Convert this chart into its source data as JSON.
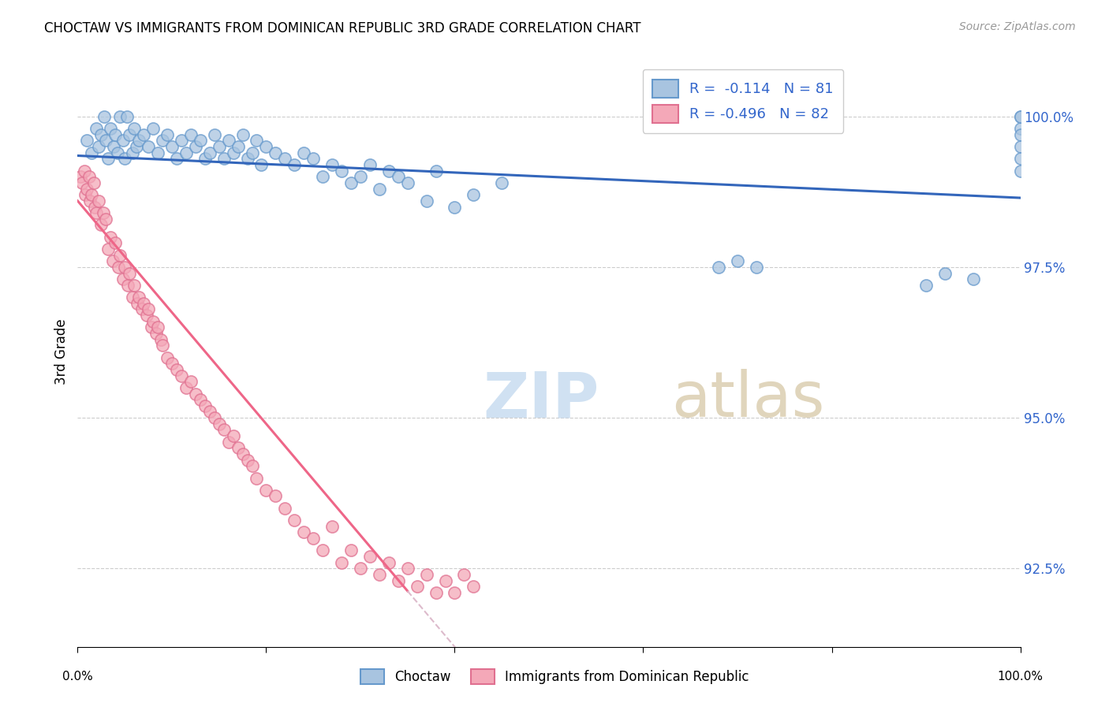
{
  "title": "CHOCTAW VS IMMIGRANTS FROM DOMINICAN REPUBLIC 3RD GRADE CORRELATION CHART",
  "source": "Source: ZipAtlas.com",
  "ylabel": "3rd Grade",
  "yticks": [
    92.5,
    95.0,
    97.5,
    100.0
  ],
  "ytick_labels": [
    "92.5%",
    "95.0%",
    "97.5%",
    "100.0%"
  ],
  "xlim": [
    0.0,
    100.0
  ],
  "ylim": [
    91.2,
    101.0
  ],
  "blue_R": "-0.114",
  "blue_N": "81",
  "pink_R": "-0.496",
  "pink_N": "82",
  "blue_color": "#A8C4E0",
  "pink_color": "#F4A8B8",
  "blue_edge_color": "#6699CC",
  "pink_edge_color": "#E07090",
  "blue_line_color": "#3366BB",
  "pink_line_color": "#EE6688",
  "dashed_line_color": "#DDBBCC",
  "blue_line_y0": 99.35,
  "blue_line_y1": 98.65,
  "pink_line_y0": 98.6,
  "pink_line_solid_end_x": 35.0,
  "pink_line_slope": -0.185,
  "blue_scatter_x": [
    1.0,
    1.5,
    2.0,
    2.2,
    2.5,
    2.8,
    3.0,
    3.2,
    3.5,
    3.8,
    4.0,
    4.2,
    4.5,
    4.8,
    5.0,
    5.2,
    5.5,
    5.8,
    6.0,
    6.2,
    6.5,
    7.0,
    7.5,
    8.0,
    8.5,
    9.0,
    9.5,
    10.0,
    10.5,
    11.0,
    11.5,
    12.0,
    12.5,
    13.0,
    13.5,
    14.0,
    14.5,
    15.0,
    15.5,
    16.0,
    16.5,
    17.0,
    17.5,
    18.0,
    18.5,
    19.0,
    19.5,
    20.0,
    21.0,
    22.0,
    23.0,
    24.0,
    25.0,
    26.0,
    27.0,
    28.0,
    29.0,
    30.0,
    31.0,
    32.0,
    33.0,
    34.0,
    35.0,
    37.0,
    38.0,
    40.0,
    42.0,
    45.0,
    68.0,
    70.0,
    72.0,
    90.0,
    92.0,
    95.0,
    100.0,
    100.0,
    100.0,
    100.0,
    100.0,
    100.0,
    100.0
  ],
  "blue_scatter_y": [
    99.6,
    99.4,
    99.8,
    99.5,
    99.7,
    100.0,
    99.6,
    99.3,
    99.8,
    99.5,
    99.7,
    99.4,
    100.0,
    99.6,
    99.3,
    100.0,
    99.7,
    99.4,
    99.8,
    99.5,
    99.6,
    99.7,
    99.5,
    99.8,
    99.4,
    99.6,
    99.7,
    99.5,
    99.3,
    99.6,
    99.4,
    99.7,
    99.5,
    99.6,
    99.3,
    99.4,
    99.7,
    99.5,
    99.3,
    99.6,
    99.4,
    99.5,
    99.7,
    99.3,
    99.4,
    99.6,
    99.2,
    99.5,
    99.4,
    99.3,
    99.2,
    99.4,
    99.3,
    99.0,
    99.2,
    99.1,
    98.9,
    99.0,
    99.2,
    98.8,
    99.1,
    99.0,
    98.9,
    98.6,
    99.1,
    98.5,
    98.7,
    98.9,
    97.5,
    97.6,
    97.5,
    97.2,
    97.4,
    97.3,
    100.0,
    99.8,
    99.7,
    99.5,
    99.3,
    99.1,
    100.0
  ],
  "pink_scatter_x": [
    0.3,
    0.5,
    0.7,
    0.8,
    1.0,
    1.2,
    1.3,
    1.5,
    1.7,
    1.8,
    2.0,
    2.2,
    2.5,
    2.7,
    3.0,
    3.2,
    3.5,
    3.7,
    4.0,
    4.3,
    4.5,
    4.8,
    5.0,
    5.3,
    5.5,
    5.8,
    6.0,
    6.3,
    6.5,
    6.8,
    7.0,
    7.3,
    7.5,
    7.8,
    8.0,
    8.3,
    8.5,
    8.8,
    9.0,
    9.5,
    10.0,
    10.5,
    11.0,
    11.5,
    12.0,
    12.5,
    13.0,
    13.5,
    14.0,
    14.5,
    15.0,
    15.5,
    16.0,
    16.5,
    17.0,
    17.5,
    18.0,
    18.5,
    19.0,
    20.0,
    21.0,
    22.0,
    23.0,
    24.0,
    25.0,
    26.0,
    27.0,
    28.0,
    29.0,
    30.0,
    31.0,
    32.0,
    33.0,
    34.0,
    35.0,
    36.0,
    37.0,
    38.0,
    39.0,
    40.0,
    41.0,
    42.0
  ],
  "pink_scatter_y": [
    99.0,
    98.9,
    99.1,
    98.7,
    98.8,
    99.0,
    98.6,
    98.7,
    98.9,
    98.5,
    98.4,
    98.6,
    98.2,
    98.4,
    98.3,
    97.8,
    98.0,
    97.6,
    97.9,
    97.5,
    97.7,
    97.3,
    97.5,
    97.2,
    97.4,
    97.0,
    97.2,
    96.9,
    97.0,
    96.8,
    96.9,
    96.7,
    96.8,
    96.5,
    96.6,
    96.4,
    96.5,
    96.3,
    96.2,
    96.0,
    95.9,
    95.8,
    95.7,
    95.5,
    95.6,
    95.4,
    95.3,
    95.2,
    95.1,
    95.0,
    94.9,
    94.8,
    94.6,
    94.7,
    94.5,
    94.4,
    94.3,
    94.2,
    94.0,
    93.8,
    93.7,
    93.5,
    93.3,
    93.1,
    93.0,
    92.8,
    93.2,
    92.6,
    92.8,
    92.5,
    92.7,
    92.4,
    92.6,
    92.3,
    92.5,
    92.2,
    92.4,
    92.1,
    92.3,
    92.1,
    92.4,
    92.2
  ]
}
